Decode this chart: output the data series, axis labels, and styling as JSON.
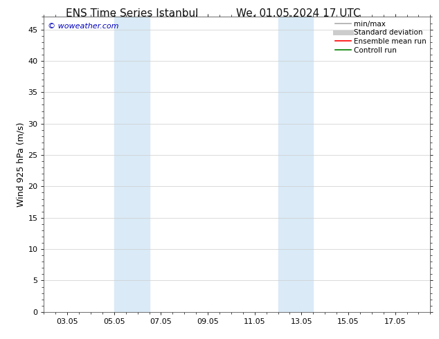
{
  "title_left": "ENS Time Series Istanbul",
  "title_right": "We. 01.05.2024 17 UTC",
  "ylabel": "Wind 925 hPa (m/s)",
  "watermark": "© woweather.com",
  "ylim": [
    0,
    47
  ],
  "yticks": [
    0,
    5,
    10,
    15,
    20,
    25,
    30,
    35,
    40,
    45
  ],
  "xtick_labels": [
    "03.05",
    "05.05",
    "07.05",
    "09.05",
    "11.05",
    "13.05",
    "15.05",
    "17.05"
  ],
  "xtick_positions": [
    2,
    4,
    6,
    8,
    10,
    12,
    14,
    16
  ],
  "xlim": [
    1,
    17.5
  ],
  "background_color": "#ffffff",
  "plot_bg_color": "#ffffff",
  "shaded_bands": [
    {
      "x_start": 4.0,
      "x_end": 5.5,
      "color": "#daeaf7"
    },
    {
      "x_start": 11.0,
      "x_end": 12.5,
      "color": "#daeaf7"
    }
  ],
  "legend_items": [
    {
      "label": "min/max",
      "color": "#aaaaaa",
      "lw": 1.2
    },
    {
      "label": "Standard deviation",
      "color": "#cccccc",
      "lw": 5
    },
    {
      "label": "Ensemble mean run",
      "color": "#ff0000",
      "lw": 1.2
    },
    {
      "label": "Controll run",
      "color": "#008000",
      "lw": 1.2
    }
  ],
  "title_fontsize": 11,
  "tick_fontsize": 8,
  "ylabel_fontsize": 9,
  "watermark_color": "#0000bb",
  "watermark_fontsize": 8,
  "grid_color": "#cccccc",
  "legend_fontsize": 7.5
}
